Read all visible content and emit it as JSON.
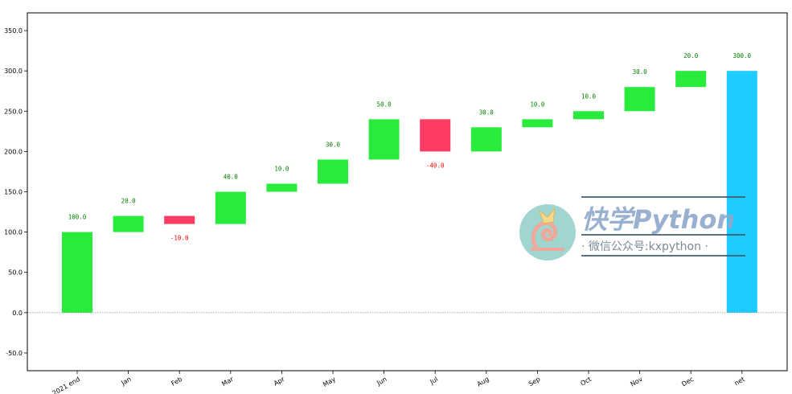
{
  "chart_data": {
    "type": "bar",
    "subtype": "waterfall",
    "categories": [
      "2021 end",
      "Jan",
      "Feb",
      "Mar",
      "Apr",
      "May",
      "Jun",
      "Jul",
      "Aug",
      "Sep",
      "Oct",
      "Nov",
      "Dec",
      "net"
    ],
    "changes": [
      100.0,
      20.0,
      -10.0,
      40.0,
      10.0,
      30.0,
      50.0,
      -40.0,
      30.0,
      10.0,
      10.0,
      30.0,
      20.0,
      300.0
    ],
    "labels": [
      "100.0",
      "20.0",
      "-10.0",
      "40.0",
      "10.0",
      "30.0",
      "50.0",
      "-40.0",
      "30.0",
      "10.0",
      "10.0",
      "30.0",
      "20.0",
      "300.0"
    ],
    "total_index": 13,
    "ylim": [
      -72,
      372
    ],
    "yticks": [
      -50,
      0,
      50,
      100,
      150,
      200,
      250,
      300,
      350
    ],
    "ytick_labels": [
      "-50.0",
      "0.0",
      "50.0",
      "100.0",
      "150.0",
      "200.0",
      "250.0",
      "300.0",
      "350.0"
    ],
    "zero_line": true,
    "grid": false,
    "colors": {
      "increase": "#28eb3c",
      "decrease": "#fd3c64",
      "total": "#1ecbff",
      "label_increase": "#008000",
      "label_decrease": "#ff0000",
      "label_total": "#008000"
    }
  },
  "watermark": {
    "title": "快学Python",
    "subtitle": "·  微信公众号:kxpython  ·"
  }
}
